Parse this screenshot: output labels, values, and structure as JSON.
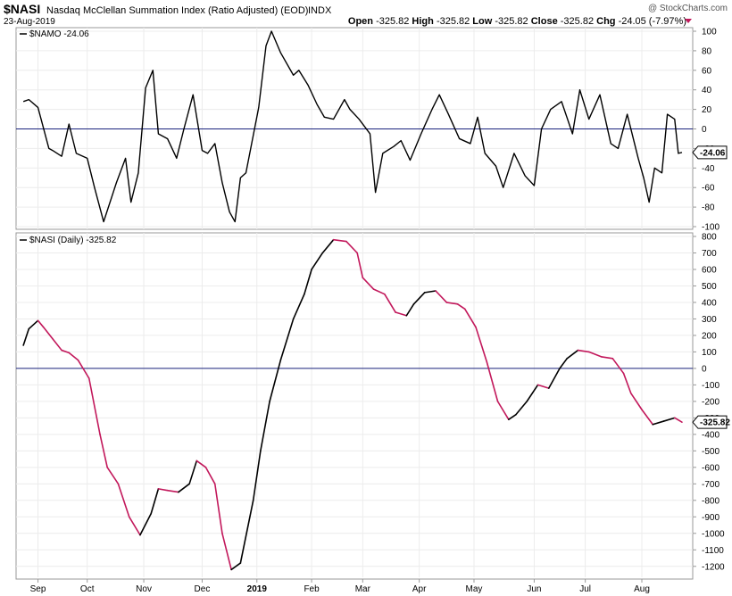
{
  "header": {
    "symbol": "$NASI",
    "name": "Nasdaq McClellan Summation Index (Ratio Adjusted) (EOD)",
    "exchange": "INDX",
    "date": "23-Aug-2019",
    "watermark": "@ StockCharts.com",
    "ohlc": [
      {
        "label": "Open",
        "value": "-325.82"
      },
      {
        "label": "High",
        "value": "-325.82"
      },
      {
        "label": "Low",
        "value": "-325.82"
      },
      {
        "label": "Close",
        "value": "-325.82"
      },
      {
        "label": "Chg",
        "value": "-24.05 (-7.97%)"
      }
    ]
  },
  "chart_data": [
    {
      "type": "line",
      "legend": "$NAMO -24.06",
      "last_value_label": "-24.06",
      "last_value": -24.06,
      "ylim": [
        -100,
        100
      ],
      "yticks": [
        100,
        80,
        60,
        40,
        20,
        0,
        -20,
        -40,
        -60,
        -80,
        -100
      ],
      "zero_line": true,
      "line_color": "#000000",
      "zero_line_color": "#1a237e",
      "x": [
        "2018-08-27",
        "2018-08-30",
        "2018-09-04",
        "2018-09-10",
        "2018-09-12",
        "2018-09-17",
        "2018-09-21",
        "2018-09-25",
        "2018-10-01",
        "2018-10-05",
        "2018-10-10",
        "2018-10-17",
        "2018-10-22",
        "2018-10-25",
        "2018-10-29",
        "2018-11-02",
        "2018-11-06",
        "2018-11-09",
        "2018-11-14",
        "2018-11-19",
        "2018-11-23",
        "2018-11-28",
        "2018-12-03",
        "2018-12-06",
        "2018-12-10",
        "2018-12-14",
        "2018-12-18",
        "2018-12-21",
        "2018-12-24",
        "2018-12-27",
        "2019-01-03",
        "2019-01-07",
        "2019-01-10",
        "2019-01-15",
        "2019-01-22",
        "2019-01-25",
        "2019-01-30",
        "2019-02-04",
        "2019-02-08",
        "2019-02-13",
        "2019-02-19",
        "2019-02-22",
        "2019-02-27",
        "2019-03-05",
        "2019-03-08",
        "2019-03-12",
        "2019-03-18",
        "2019-03-22",
        "2019-03-27",
        "2019-04-02",
        "2019-04-08",
        "2019-04-12",
        "2019-04-17",
        "2019-04-23",
        "2019-04-29",
        "2019-05-03",
        "2019-05-07",
        "2019-05-13",
        "2019-05-17",
        "2019-05-23",
        "2019-05-29",
        "2019-06-03",
        "2019-06-07",
        "2019-06-12",
        "2019-06-18",
        "2019-06-24",
        "2019-06-28",
        "2019-07-03",
        "2019-07-09",
        "2019-07-15",
        "2019-07-19",
        "2019-07-24",
        "2019-07-30",
        "2019-08-02",
        "2019-08-05",
        "2019-08-08",
        "2019-08-12",
        "2019-08-15",
        "2019-08-19",
        "2019-08-21",
        "2019-08-23"
      ],
      "y": [
        28,
        30,
        22,
        -20,
        -22,
        -28,
        5,
        -25,
        -30,
        -60,
        -95,
        -55,
        -30,
        -75,
        -45,
        42,
        60,
        -5,
        -10,
        -30,
        0,
        35,
        -22,
        -25,
        -15,
        -55,
        -85,
        -95,
        -50,
        -45,
        22,
        85,
        100,
        78,
        55,
        60,
        45,
        25,
        12,
        10,
        30,
        20,
        10,
        -5,
        -65,
        -25,
        -18,
        -12,
        -32,
        -5,
        20,
        35,
        15,
        -10,
        -15,
        12,
        -25,
        -38,
        -60,
        -25,
        -48,
        -58,
        0,
        20,
        28,
        -5,
        40,
        10,
        35,
        -15,
        -20,
        15,
        -30,
        -50,
        -75,
        -40,
        -45,
        15,
        10,
        -25,
        -24.06
      ]
    },
    {
      "type": "line",
      "legend": "$NASI (Daily) -325.82",
      "last_value_label": "-325.82",
      "last_value": -325.82,
      "ylim": [
        -1250,
        800
      ],
      "yticks": [
        800,
        700,
        600,
        500,
        400,
        300,
        200,
        100,
        0,
        -100,
        -200,
        -300,
        -400,
        -500,
        -600,
        -700,
        -800,
        -900,
        -1000,
        -1100,
        -1200
      ],
      "zero_line": true,
      "rising_color": "#000000",
      "falling_color": "#c2185b",
      "zero_line_color": "#1a237e",
      "x": [
        "2018-08-27",
        "2018-08-30",
        "2018-09-04",
        "2018-09-07",
        "2018-09-12",
        "2018-09-17",
        "2018-09-21",
        "2018-09-26",
        "2018-10-02",
        "2018-10-08",
        "2018-10-12",
        "2018-10-18",
        "2018-10-24",
        "2018-10-30",
        "2018-11-05",
        "2018-11-09",
        "2018-11-14",
        "2018-11-20",
        "2018-11-26",
        "2018-11-30",
        "2018-12-05",
        "2018-12-10",
        "2018-12-14",
        "2018-12-19",
        "2018-12-24",
        "2018-12-31",
        "2019-01-04",
        "2019-01-09",
        "2019-01-15",
        "2019-01-22",
        "2019-01-28",
        "2019-02-01",
        "2019-02-07",
        "2019-02-13",
        "2019-02-20",
        "2019-02-26",
        "2019-03-01",
        "2019-03-07",
        "2019-03-13",
        "2019-03-19",
        "2019-03-25",
        "2019-03-29",
        "2019-04-04",
        "2019-04-10",
        "2019-04-16",
        "2019-04-22",
        "2019-04-26",
        "2019-05-02",
        "2019-05-08",
        "2019-05-14",
        "2019-05-20",
        "2019-05-24",
        "2019-05-30",
        "2019-06-05",
        "2019-06-11",
        "2019-06-17",
        "2019-06-21",
        "2019-06-27",
        "2019-07-03",
        "2019-07-10",
        "2019-07-16",
        "2019-07-22",
        "2019-07-26",
        "2019-08-01",
        "2019-08-07",
        "2019-08-13",
        "2019-08-19",
        "2019-08-23"
      ],
      "y": [
        140,
        240,
        290,
        250,
        180,
        110,
        95,
        50,
        -60,
        -400,
        -600,
        -700,
        -900,
        -1010,
        -880,
        -730,
        -740,
        -750,
        -700,
        -560,
        -600,
        -700,
        -1000,
        -1220,
        -1180,
        -800,
        -500,
        -200,
        50,
        300,
        450,
        600,
        700,
        780,
        770,
        700,
        550,
        480,
        450,
        340,
        320,
        390,
        460,
        470,
        400,
        390,
        360,
        250,
        40,
        -200,
        -310,
        -280,
        -200,
        -100,
        -120,
        0,
        60,
        110,
        100,
        70,
        60,
        -30,
        -150,
        -250,
        -340,
        -320,
        -300,
        -325.82
      ]
    }
  ],
  "x_axis": {
    "labels": [
      {
        "text": "Sep",
        "date": "2018-09-04"
      },
      {
        "text": "Oct",
        "date": "2018-10-01"
      },
      {
        "text": "Nov",
        "date": "2018-11-01"
      },
      {
        "text": "Dec",
        "date": "2018-12-03"
      },
      {
        "text": "2019",
        "date": "2019-01-02"
      },
      {
        "text": "Feb",
        "date": "2019-02-01"
      },
      {
        "text": "Mar",
        "date": "2019-03-01"
      },
      {
        "text": "Apr",
        "date": "2019-04-01"
      },
      {
        "text": "May",
        "date": "2019-05-01"
      },
      {
        "text": "Jun",
        "date": "2019-06-03"
      },
      {
        "text": "Jul",
        "date": "2019-07-01"
      },
      {
        "text": "Aug",
        "date": "2019-08-01"
      }
    ]
  }
}
